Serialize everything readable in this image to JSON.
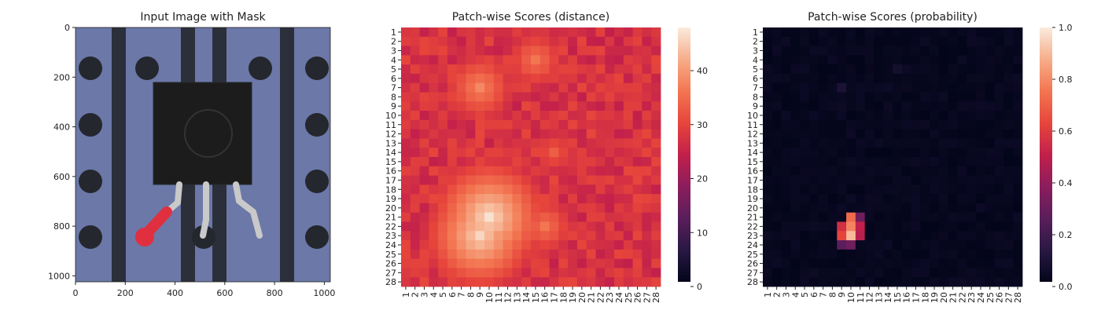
{
  "chart_data": [
    {
      "type": "image",
      "title": "Input Image with Mask",
      "xlim": [
        0,
        1024
      ],
      "ylim": [
        1024,
        0
      ],
      "x_ticks": [
        0,
        200,
        400,
        600,
        800,
        1000
      ],
      "y_ticks": [
        0,
        200,
        400,
        600,
        800,
        1000
      ],
      "colors": {
        "board": "#6b78a8",
        "slot": "#2b2f3a",
        "hole": "#25272e",
        "component": "#1c1c1c",
        "mask": "#e0303f",
        "lead": "#c9c9c9"
      }
    },
    {
      "type": "heatmap",
      "title": "Patch-wise Scores (distance)",
      "x_categories": [
        "1",
        "2",
        "3",
        "4",
        "5",
        "6",
        "7",
        "8",
        "9",
        "10",
        "11",
        "12",
        "13",
        "14",
        "15",
        "16",
        "17",
        "18",
        "19",
        "20",
        "21",
        "22",
        "23",
        "24",
        "25",
        "26",
        "27",
        "28"
      ],
      "y_categories": [
        "1",
        "2",
        "3",
        "4",
        "5",
        "6",
        "7",
        "8",
        "9",
        "10",
        "11",
        "12",
        "13",
        "14",
        "15",
        "16",
        "17",
        "18",
        "19",
        "20",
        "21",
        "22",
        "23",
        "24",
        "25",
        "26",
        "27",
        "28"
      ],
      "value_range": [
        0,
        48
      ],
      "colorbar_ticks": [
        0,
        10,
        20,
        30,
        40
      ],
      "colormap": "rocket",
      "hotspots": [
        {
          "row": 4,
          "col": 15,
          "value": 36
        },
        {
          "row": 7,
          "col": 9,
          "value": 38
        },
        {
          "row": 14,
          "col": 17,
          "value": 33
        },
        {
          "row": 21,
          "col": 10,
          "value": 47
        },
        {
          "row": 23,
          "col": 9,
          "value": 46
        },
        {
          "row": 22,
          "col": 16,
          "value": 36
        },
        {
          "row": 24,
          "col": 7,
          "value": 38
        }
      ]
    },
    {
      "type": "heatmap",
      "title": "Patch-wise Scores (probability)",
      "x_categories": [
        "1",
        "2",
        "3",
        "4",
        "5",
        "6",
        "7",
        "8",
        "9",
        "10",
        "11",
        "12",
        "13",
        "14",
        "15",
        "16",
        "17",
        "18",
        "19",
        "20",
        "21",
        "22",
        "23",
        "24",
        "25",
        "26",
        "27",
        "28"
      ],
      "y_categories": [
        "1",
        "2",
        "3",
        "4",
        "5",
        "6",
        "7",
        "8",
        "9",
        "10",
        "11",
        "12",
        "13",
        "14",
        "15",
        "16",
        "17",
        "18",
        "19",
        "20",
        "21",
        "22",
        "23",
        "24",
        "25",
        "26",
        "27",
        "28"
      ],
      "value_range": [
        0,
        1.0
      ],
      "colorbar_ticks": [
        0.0,
        0.2,
        0.4,
        0.6,
        0.8,
        1.0
      ],
      "colormap": "rocket",
      "hotspots": [
        {
          "row": 21,
          "col": 10,
          "value": 0.72
        },
        {
          "row": 21,
          "col": 11,
          "value": 0.3
        },
        {
          "row": 22,
          "col": 9,
          "value": 0.55
        },
        {
          "row": 22,
          "col": 10,
          "value": 0.78
        },
        {
          "row": 22,
          "col": 11,
          "value": 0.5
        },
        {
          "row": 23,
          "col": 9,
          "value": 0.62
        },
        {
          "row": 23,
          "col": 10,
          "value": 0.9
        },
        {
          "row": 23,
          "col": 11,
          "value": 0.48
        },
        {
          "row": 24,
          "col": 9,
          "value": 0.25
        },
        {
          "row": 24,
          "col": 10,
          "value": 0.3
        },
        {
          "row": 7,
          "col": 9,
          "value": 0.08
        },
        {
          "row": 5,
          "col": 15,
          "value": 0.06
        }
      ]
    }
  ]
}
